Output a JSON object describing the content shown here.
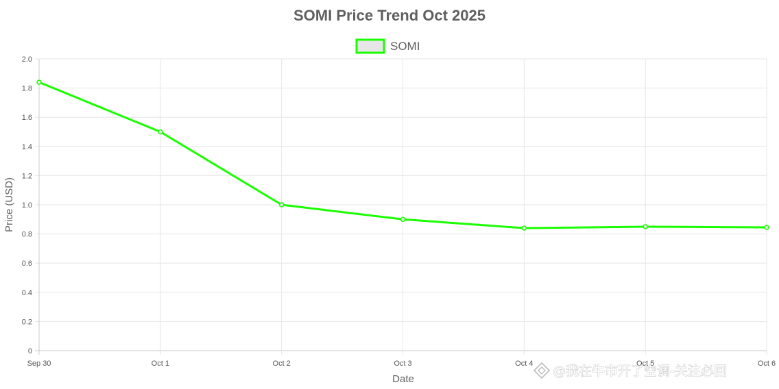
{
  "chart_data": {
    "type": "line",
    "title": "SOMI Price Trend Oct 2025",
    "xlabel": "Date",
    "ylabel": "Price (USD)",
    "categories": [
      "Sep 30",
      "Oct 1",
      "Oct 2",
      "Oct 3",
      "Oct 4",
      "Oct 5",
      "Oct 6"
    ],
    "series": [
      {
        "name": "SOMI",
        "values": [
          1.84,
          1.5,
          1.0,
          0.9,
          0.84,
          0.85,
          0.845
        ],
        "color": "#1aff00"
      }
    ],
    "ylim": [
      0,
      2.0
    ],
    "yticks": [
      "0",
      "0.2",
      "0.4",
      "0.6",
      "0.8",
      "1.0",
      "1.2",
      "1.4",
      "1.6",
      "1.8",
      "2.0"
    ],
    "grid": true,
    "legend_position": "top-center"
  },
  "watermark": {
    "text": "@我在牛市开了空调-关注必回",
    "icon": "diamond-logo-icon"
  }
}
